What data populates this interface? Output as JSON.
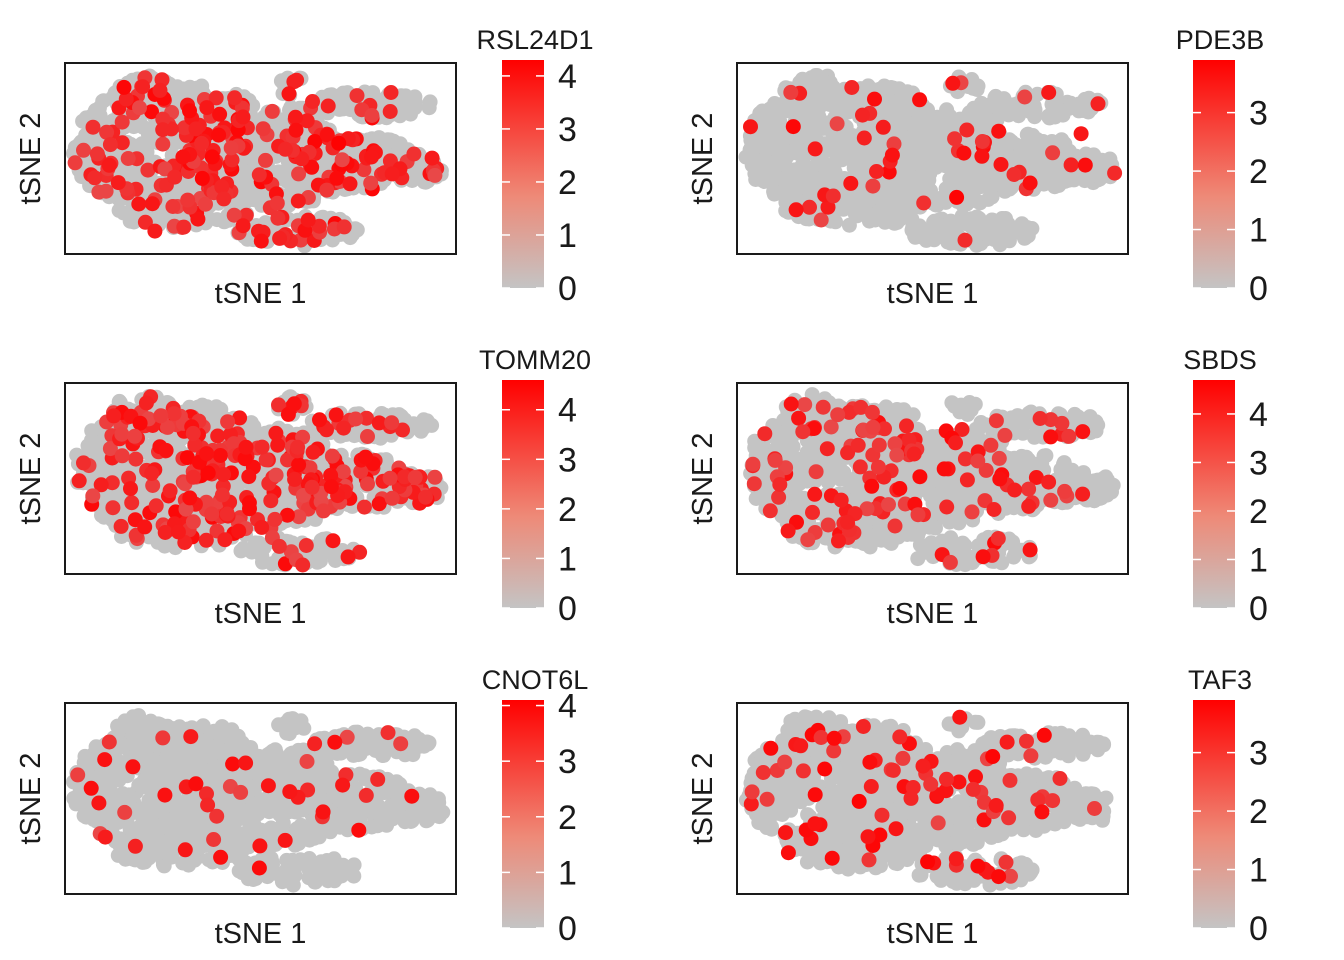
{
  "chart_data": [
    {
      "type": "scatter",
      "gene": "RSL24D1",
      "xlabel": "tSNE 1",
      "ylabel": "tSNE 2",
      "scale_max": 4.3,
      "ticks": [
        "0",
        "1",
        "2",
        "3",
        "4"
      ],
      "tick_values": [
        0,
        1,
        2,
        3,
        4
      ],
      "colors": {
        "low": "#c4c4c4",
        "high": "#ff0000"
      },
      "density": 0.16,
      "seed": 11,
      "highlights": [
        {
          "x": 0.7,
          "y": 0.42,
          "v": 4.2
        },
        {
          "x": 0.23,
          "y": 0.88,
          "v": 3.0
        }
      ]
    },
    {
      "type": "scatter",
      "gene": "PDE3B",
      "xlabel": "tSNE 1",
      "ylabel": "tSNE 2",
      "scale_max": 3.9,
      "ticks": [
        "0",
        "1",
        "2",
        "3"
      ],
      "tick_values": [
        0,
        1,
        2,
        3
      ],
      "colors": {
        "low": "#c4c4c4",
        "high": "#ff0000"
      },
      "density": 0.03,
      "seed": 23,
      "highlights": [
        {
          "x": 0.2,
          "y": 0.45,
          "v": 2.8
        },
        {
          "x": 0.88,
          "y": 0.37,
          "v": 2.9
        }
      ]
    },
    {
      "type": "scatter",
      "gene": "TOMM20",
      "xlabel": "tSNE 1",
      "ylabel": "tSNE 2",
      "scale_max": 4.6,
      "ticks": [
        "0",
        "1",
        "2",
        "3",
        "4"
      ],
      "tick_values": [
        0,
        1,
        2,
        3,
        4
      ],
      "colors": {
        "low": "#c4c4c4",
        "high": "#ff0000"
      },
      "density": 0.2,
      "seed": 37,
      "highlights": [
        {
          "x": 0.47,
          "y": 0.49,
          "v": 3.6
        },
        {
          "x": 0.29,
          "y": 0.78,
          "v": 3.2
        }
      ]
    },
    {
      "type": "scatter",
      "gene": "SBDS",
      "xlabel": "tSNE 1",
      "ylabel": "tSNE 2",
      "scale_max": 4.7,
      "ticks": [
        "0",
        "1",
        "2",
        "3",
        "4"
      ],
      "tick_values": [
        0,
        1,
        2,
        3,
        4
      ],
      "colors": {
        "low": "#c4c4c4",
        "high": "#ff0000"
      },
      "density": 0.08,
      "seed": 41,
      "highlights": [
        {
          "x": 0.53,
          "y": 0.45,
          "v": 4.0
        },
        {
          "x": 0.71,
          "y": 0.56,
          "v": 3.0
        }
      ]
    },
    {
      "type": "scatter",
      "gene": "CNOT6L",
      "xlabel": "tSNE 1",
      "ylabel": "tSNE 2",
      "scale_max": 4.1,
      "ticks": [
        "0",
        "1",
        "2",
        "3",
        "4"
      ],
      "tick_values": [
        0,
        1,
        2,
        3,
        4
      ],
      "colors": {
        "low": "#c4c4c4",
        "high": "#ff0000"
      },
      "density": 0.025,
      "seed": 53,
      "highlights": [
        {
          "x": 0.71,
          "y": 0.43,
          "v": 3.0
        },
        {
          "x": 0.66,
          "y": 0.57,
          "v": 3.2
        },
        {
          "x": 0.18,
          "y": 0.75,
          "v": 2.6
        }
      ]
    },
    {
      "type": "scatter",
      "gene": "TAF3",
      "xlabel": "tSNE 1",
      "ylabel": "tSNE 2",
      "scale_max": 3.9,
      "ticks": [
        "0",
        "1",
        "2",
        "3"
      ],
      "tick_values": [
        0,
        1,
        2,
        3
      ],
      "colors": {
        "low": "#c4c4c4",
        "high": "#ff0000"
      },
      "density": 0.06,
      "seed": 67,
      "highlights": [
        {
          "x": 0.34,
          "y": 0.31,
          "v": 3.3
        },
        {
          "x": 0.2,
          "y": 0.48,
          "v": 3.4
        },
        {
          "x": 0.78,
          "y": 0.57,
          "v": 3.3
        }
      ]
    }
  ]
}
